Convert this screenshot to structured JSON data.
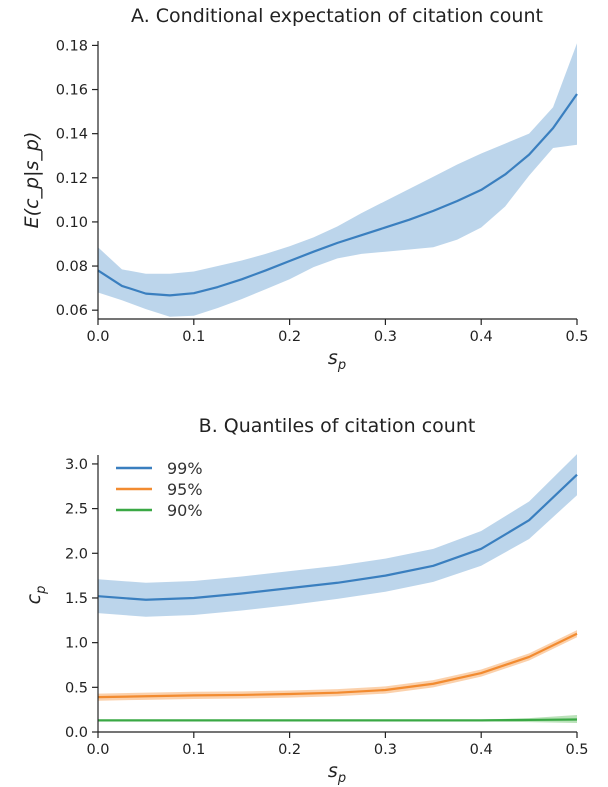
{
  "chart_data": [
    {
      "type": "line",
      "title": "A. Conditional expectation of citation count",
      "xlabel_main": "s",
      "xlabel_sub": "p",
      "ylabel": "E(c_p|s_p)",
      "xlim": [
        0.0,
        0.5
      ],
      "ylim": [
        0.056,
        0.182
      ],
      "xticks": [
        0.0,
        0.1,
        0.2,
        0.3,
        0.4,
        0.5
      ],
      "xtick_labels": [
        "0.0",
        "0.1",
        "0.2",
        "0.3",
        "0.4",
        "0.5"
      ],
      "yticks": [
        0.06,
        0.08,
        0.1,
        0.12,
        0.14,
        0.16,
        0.18
      ],
      "ytick_labels": [
        "0.06",
        "0.08",
        "0.10",
        "0.12",
        "0.14",
        "0.16",
        "0.18"
      ],
      "grid": false,
      "series": [
        {
          "color": "#3a7fbf",
          "band_color": "#b8d3ea",
          "x": [
            0.0,
            0.025,
            0.05,
            0.075,
            0.1,
            0.125,
            0.15,
            0.175,
            0.2,
            0.225,
            0.25,
            0.275,
            0.3,
            0.325,
            0.35,
            0.375,
            0.4,
            0.425,
            0.45,
            0.475,
            0.5
          ],
          "y": [
            0.078,
            0.071,
            0.0675,
            0.0667,
            0.0677,
            0.0705,
            0.074,
            0.078,
            0.0823,
            0.0865,
            0.0905,
            0.094,
            0.0975,
            0.101,
            0.105,
            0.1095,
            0.1145,
            0.1215,
            0.1305,
            0.1425,
            0.158
          ],
          "lower": [
            0.068,
            0.0645,
            0.0605,
            0.057,
            0.0575,
            0.061,
            0.065,
            0.0695,
            0.074,
            0.0795,
            0.0835,
            0.0855,
            0.0865,
            0.0875,
            0.0885,
            0.092,
            0.0975,
            0.107,
            0.121,
            0.1335,
            0.135
          ],
          "upper": [
            0.0885,
            0.0785,
            0.0765,
            0.0765,
            0.0775,
            0.08,
            0.0825,
            0.0855,
            0.089,
            0.093,
            0.098,
            0.104,
            0.1095,
            0.115,
            0.1205,
            0.126,
            0.131,
            0.1355,
            0.14,
            0.152,
            0.181
          ]
        }
      ]
    },
    {
      "type": "line",
      "title": "B. Quantiles of citation count",
      "xlabel_main": "s",
      "xlabel_sub": "p",
      "ylabel_main": "c",
      "ylabel_sub": "p",
      "xlim": [
        0.0,
        0.5
      ],
      "ylim": [
        0.0,
        3.1
      ],
      "xticks": [
        0.0,
        0.1,
        0.2,
        0.3,
        0.4,
        0.5
      ],
      "xtick_labels": [
        "0.0",
        "0.1",
        "0.2",
        "0.3",
        "0.4",
        "0.5"
      ],
      "yticks": [
        0.0,
        0.5,
        1.0,
        1.5,
        2.0,
        2.5,
        3.0
      ],
      "ytick_labels": [
        "0.0",
        "0.5",
        "1.0",
        "1.5",
        "2.0",
        "2.5",
        "3.0"
      ],
      "grid": false,
      "legend": "top-left",
      "series": [
        {
          "name": "99%",
          "color": "#3a7fbf",
          "band_color": "#b8d3ea",
          "x": [
            0.0,
            0.05,
            0.1,
            0.15,
            0.2,
            0.25,
            0.3,
            0.35,
            0.4,
            0.45,
            0.5
          ],
          "y": [
            1.52,
            1.48,
            1.5,
            1.55,
            1.61,
            1.67,
            1.75,
            1.86,
            2.05,
            2.37,
            2.88
          ],
          "lower": [
            1.33,
            1.29,
            1.31,
            1.36,
            1.42,
            1.49,
            1.57,
            1.68,
            1.86,
            2.16,
            2.65
          ],
          "upper": [
            1.71,
            1.67,
            1.69,
            1.74,
            1.8,
            1.86,
            1.94,
            2.05,
            2.25,
            2.58,
            3.11
          ]
        },
        {
          "name": "95%",
          "color": "#f28b30",
          "band_color": "#fbcfa8",
          "x": [
            0.0,
            0.05,
            0.1,
            0.15,
            0.2,
            0.25,
            0.3,
            0.35,
            0.4,
            0.45,
            0.5
          ],
          "y": [
            0.39,
            0.4,
            0.41,
            0.415,
            0.425,
            0.44,
            0.47,
            0.54,
            0.66,
            0.84,
            1.1
          ],
          "lower": [
            0.35,
            0.36,
            0.37,
            0.375,
            0.385,
            0.4,
            0.43,
            0.5,
            0.62,
            0.8,
            1.06
          ],
          "upper": [
            0.43,
            0.44,
            0.45,
            0.455,
            0.465,
            0.48,
            0.51,
            0.58,
            0.7,
            0.88,
            1.14
          ]
        },
        {
          "name": "90%",
          "color": "#3aa845",
          "band_color": "#b6e0b5",
          "x": [
            0.0,
            0.05,
            0.1,
            0.15,
            0.2,
            0.25,
            0.3,
            0.35,
            0.4,
            0.45,
            0.5
          ],
          "y": [
            0.13,
            0.13,
            0.13,
            0.13,
            0.13,
            0.13,
            0.13,
            0.13,
            0.13,
            0.135,
            0.14
          ],
          "lower": [
            0.12,
            0.12,
            0.12,
            0.12,
            0.12,
            0.12,
            0.12,
            0.12,
            0.12,
            0.11,
            0.1
          ],
          "upper": [
            0.14,
            0.14,
            0.14,
            0.14,
            0.14,
            0.14,
            0.14,
            0.14,
            0.14,
            0.155,
            0.19
          ]
        }
      ]
    }
  ]
}
